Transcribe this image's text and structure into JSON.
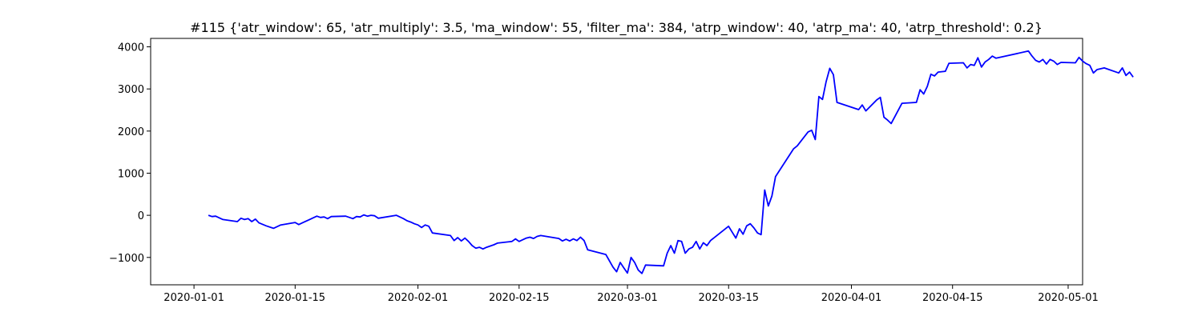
{
  "chart_data": {
    "type": "line",
    "title": "#115 {'atr_window': 65, 'atr_multiply': 3.5, 'ma_window': 55, 'filter_ma': 384, 'atrp_window': 40, 'atrp_ma': 40, 'atrp_threshold': 0.2}",
    "xlabel": "",
    "ylabel": "",
    "x_type": "date",
    "xlim": [
      "2019-12-26",
      "2020-05-03"
    ],
    "ylim": [
      -1650,
      4200
    ],
    "x_ticks": [
      "2020-01-01",
      "2020-01-15",
      "2020-02-01",
      "2020-02-15",
      "2020-03-01",
      "2020-03-15",
      "2020-04-01",
      "2020-04-15",
      "2020-05-01"
    ],
    "y_ticks": [
      -1000,
      0,
      1000,
      2000,
      3000,
      4000
    ],
    "y_tick_labels": [
      "−1000",
      "0",
      "1000",
      "2000",
      "3000",
      "4000"
    ],
    "grid": false,
    "legend": "none",
    "color": "#0000ff",
    "series": [
      {
        "points": [
          [
            "2020-01-03T00:00",
            0
          ],
          [
            "2020-01-03T12:00",
            -30
          ],
          [
            "2020-01-04T00:00",
            -20
          ],
          [
            "2020-01-04T12:00",
            -60
          ],
          [
            "2020-01-05T00:00",
            -100
          ],
          [
            "2020-01-07T00:00",
            -150
          ],
          [
            "2020-01-07T12:00",
            -70
          ],
          [
            "2020-01-08T00:00",
            -100
          ],
          [
            "2020-01-08T12:00",
            -80
          ],
          [
            "2020-01-09T00:00",
            -150
          ],
          [
            "2020-01-09T12:00",
            -90
          ],
          [
            "2020-01-10T00:00",
            -180
          ],
          [
            "2020-01-11T00:00",
            -250
          ],
          [
            "2020-01-12T00:00",
            -310
          ],
          [
            "2020-01-12T12:00",
            -270
          ],
          [
            "2020-01-13T00:00",
            -230
          ],
          [
            "2020-01-15T00:00",
            -170
          ],
          [
            "2020-01-15T12:00",
            -220
          ],
          [
            "2020-01-16T00:00",
            -180
          ],
          [
            "2020-01-17T00:00",
            -100
          ],
          [
            "2020-01-17T12:00",
            -60
          ],
          [
            "2020-01-18T00:00",
            -20
          ],
          [
            "2020-01-18T12:00",
            -50
          ],
          [
            "2020-01-19T00:00",
            -40
          ],
          [
            "2020-01-19T12:00",
            -80
          ],
          [
            "2020-01-20T00:00",
            -30
          ],
          [
            "2020-01-22T00:00",
            -20
          ],
          [
            "2020-01-23T00:00",
            -80
          ],
          [
            "2020-01-23T12:00",
            -30
          ],
          [
            "2020-01-24T00:00",
            -40
          ],
          [
            "2020-01-24T12:00",
            10
          ],
          [
            "2020-01-25T00:00",
            -20
          ],
          [
            "2020-01-25T12:00",
            0
          ],
          [
            "2020-01-26T00:00",
            -10
          ],
          [
            "2020-01-26T12:00",
            -70
          ],
          [
            "2020-01-29T00:00",
            0
          ],
          [
            "2020-01-30T00:00",
            -80
          ],
          [
            "2020-01-30T12:00",
            -130
          ],
          [
            "2020-01-31T00:00",
            -160
          ],
          [
            "2020-01-31T12:00",
            -200
          ],
          [
            "2020-02-01T00:00",
            -230
          ],
          [
            "2020-02-01T12:00",
            -290
          ],
          [
            "2020-02-02T00:00",
            -230
          ],
          [
            "2020-02-02T12:00",
            -260
          ],
          [
            "2020-02-03T00:00",
            -420
          ],
          [
            "2020-02-05T12:00",
            -480
          ],
          [
            "2020-02-06T00:00",
            -600
          ],
          [
            "2020-02-06T12:00",
            -530
          ],
          [
            "2020-02-07T00:00",
            -610
          ],
          [
            "2020-02-07T12:00",
            -540
          ],
          [
            "2020-02-08T00:00",
            -620
          ],
          [
            "2020-02-08T12:00",
            -720
          ],
          [
            "2020-02-09T00:00",
            -780
          ],
          [
            "2020-02-09T12:00",
            -760
          ],
          [
            "2020-02-10T00:00",
            -800
          ],
          [
            "2020-02-10T12:00",
            -760
          ],
          [
            "2020-02-11T12:00",
            -700
          ],
          [
            "2020-02-12T00:00",
            -660
          ],
          [
            "2020-02-14T00:00",
            -620
          ],
          [
            "2020-02-14T12:00",
            -560
          ],
          [
            "2020-02-15T00:00",
            -620
          ],
          [
            "2020-02-15T12:00",
            -580
          ],
          [
            "2020-02-16T00:00",
            -540
          ],
          [
            "2020-02-16T12:00",
            -520
          ],
          [
            "2020-02-17T00:00",
            -550
          ],
          [
            "2020-02-17T12:00",
            -500
          ],
          [
            "2020-02-18T00:00",
            -480
          ],
          [
            "2020-02-20T12:00",
            -550
          ],
          [
            "2020-02-21T00:00",
            -610
          ],
          [
            "2020-02-21T12:00",
            -570
          ],
          [
            "2020-02-22T00:00",
            -610
          ],
          [
            "2020-02-22T12:00",
            -560
          ],
          [
            "2020-02-23T00:00",
            -600
          ],
          [
            "2020-02-23T12:00",
            -520
          ],
          [
            "2020-02-24T00:00",
            -600
          ],
          [
            "2020-02-24T12:00",
            -820
          ],
          [
            "2020-02-27T00:00",
            -930
          ],
          [
            "2020-02-27T12:00",
            -1080
          ],
          [
            "2020-02-28T00:00",
            -1230
          ],
          [
            "2020-02-28T12:00",
            -1340
          ],
          [
            "2020-02-29T00:00",
            -1120
          ],
          [
            "2020-02-29T12:00",
            -1250
          ],
          [
            "2020-03-01T00:00",
            -1370
          ],
          [
            "2020-03-01T12:00",
            -1000
          ],
          [
            "2020-03-02T00:00",
            -1120
          ],
          [
            "2020-03-02T12:00",
            -1300
          ],
          [
            "2020-03-03T00:00",
            -1380
          ],
          [
            "2020-03-03T12:00",
            -1180
          ],
          [
            "2020-03-06T00:00",
            -1200
          ],
          [
            "2020-03-06T12:00",
            -900
          ],
          [
            "2020-03-07T00:00",
            -720
          ],
          [
            "2020-03-07T12:00",
            -900
          ],
          [
            "2020-03-08T00:00",
            -600
          ],
          [
            "2020-03-08T12:00",
            -620
          ],
          [
            "2020-03-09T00:00",
            -900
          ],
          [
            "2020-03-09T12:00",
            -800
          ],
          [
            "2020-03-10T00:00",
            -760
          ],
          [
            "2020-03-10T12:00",
            -620
          ],
          [
            "2020-03-11T00:00",
            -800
          ],
          [
            "2020-03-11T12:00",
            -650
          ],
          [
            "2020-03-12T00:00",
            -720
          ],
          [
            "2020-03-12T12:00",
            -600
          ],
          [
            "2020-03-15T00:00",
            -260
          ],
          [
            "2020-03-15T12:00",
            -400
          ],
          [
            "2020-03-16T00:00",
            -540
          ],
          [
            "2020-03-16T12:00",
            -320
          ],
          [
            "2020-03-17T00:00",
            -450
          ],
          [
            "2020-03-17T12:00",
            -250
          ],
          [
            "2020-03-18T00:00",
            -200
          ],
          [
            "2020-03-18T12:00",
            -300
          ],
          [
            "2020-03-19T00:00",
            -420
          ],
          [
            "2020-03-19T12:00",
            -460
          ],
          [
            "2020-03-20T00:00",
            600
          ],
          [
            "2020-03-20T12:00",
            220
          ],
          [
            "2020-03-21T00:00",
            460
          ],
          [
            "2020-03-21T12:00",
            920
          ],
          [
            "2020-03-24T00:00",
            1580
          ],
          [
            "2020-03-24T12:00",
            1650
          ],
          [
            "2020-03-26T00:00",
            1980
          ],
          [
            "2020-03-26T12:00",
            2020
          ],
          [
            "2020-03-27T00:00",
            1800
          ],
          [
            "2020-03-27T12:00",
            2820
          ],
          [
            "2020-03-28T00:00",
            2750
          ],
          [
            "2020-03-28T12:00",
            3170
          ],
          [
            "2020-03-29T00:00",
            3490
          ],
          [
            "2020-03-29T12:00",
            3340
          ],
          [
            "2020-03-30T00:00",
            2680
          ],
          [
            "2020-04-02T00:00",
            2510
          ],
          [
            "2020-04-02T12:00",
            2620
          ],
          [
            "2020-04-03T00:00",
            2480
          ],
          [
            "2020-04-04T12:00",
            2740
          ],
          [
            "2020-04-05T00:00",
            2800
          ],
          [
            "2020-04-05T12:00",
            2330
          ],
          [
            "2020-04-06T00:00",
            2260
          ],
          [
            "2020-04-06T12:00",
            2180
          ],
          [
            "2020-04-08T00:00",
            2660
          ],
          [
            "2020-04-10T00:00",
            2680
          ],
          [
            "2020-04-10T12:00",
            2980
          ],
          [
            "2020-04-11T00:00",
            2880
          ],
          [
            "2020-04-11T12:00",
            3060
          ],
          [
            "2020-04-12T00:00",
            3350
          ],
          [
            "2020-04-12T12:00",
            3310
          ],
          [
            "2020-04-13T00:00",
            3400
          ],
          [
            "2020-04-14T00:00",
            3420
          ],
          [
            "2020-04-14T12:00",
            3610
          ],
          [
            "2020-04-16T12:00",
            3620
          ],
          [
            "2020-04-17T00:00",
            3500
          ],
          [
            "2020-04-17T12:00",
            3580
          ],
          [
            "2020-04-18T00:00",
            3560
          ],
          [
            "2020-04-18T12:00",
            3740
          ],
          [
            "2020-04-19T00:00",
            3520
          ],
          [
            "2020-04-19T12:00",
            3640
          ],
          [
            "2020-04-20T00:00",
            3700
          ],
          [
            "2020-04-20T12:00",
            3780
          ],
          [
            "2020-04-21T00:00",
            3730
          ],
          [
            "2020-04-25T12:00",
            3900
          ],
          [
            "2020-04-26T00:00",
            3780
          ],
          [
            "2020-04-26T12:00",
            3680
          ],
          [
            "2020-04-27T00:00",
            3640
          ],
          [
            "2020-04-27T12:00",
            3700
          ],
          [
            "2020-04-28T00:00",
            3590
          ],
          [
            "2020-04-28T12:00",
            3700
          ],
          [
            "2020-04-29T00:00",
            3660
          ],
          [
            "2020-04-29T12:00",
            3580
          ],
          [
            "2020-04-30T00:00",
            3630
          ],
          [
            "2020-05-02T00:00",
            3620
          ],
          [
            "2020-05-02T12:00",
            3750
          ],
          [
            "2020-05-03T00:00",
            3660
          ],
          [
            "2020-05-03T12:00",
            3600
          ],
          [
            "2020-05-04T00:00",
            3560
          ],
          [
            "2020-05-04T12:00",
            3380
          ],
          [
            "2020-05-05T00:00",
            3460
          ],
          [
            "2020-05-06T00:00",
            3500
          ],
          [
            "2020-05-08T00:00",
            3380
          ],
          [
            "2020-05-08T12:00",
            3500
          ],
          [
            "2020-05-09T00:00",
            3320
          ],
          [
            "2020-05-09T12:00",
            3400
          ],
          [
            "2020-05-10T00:00",
            3280
          ]
        ]
      }
    ]
  }
}
